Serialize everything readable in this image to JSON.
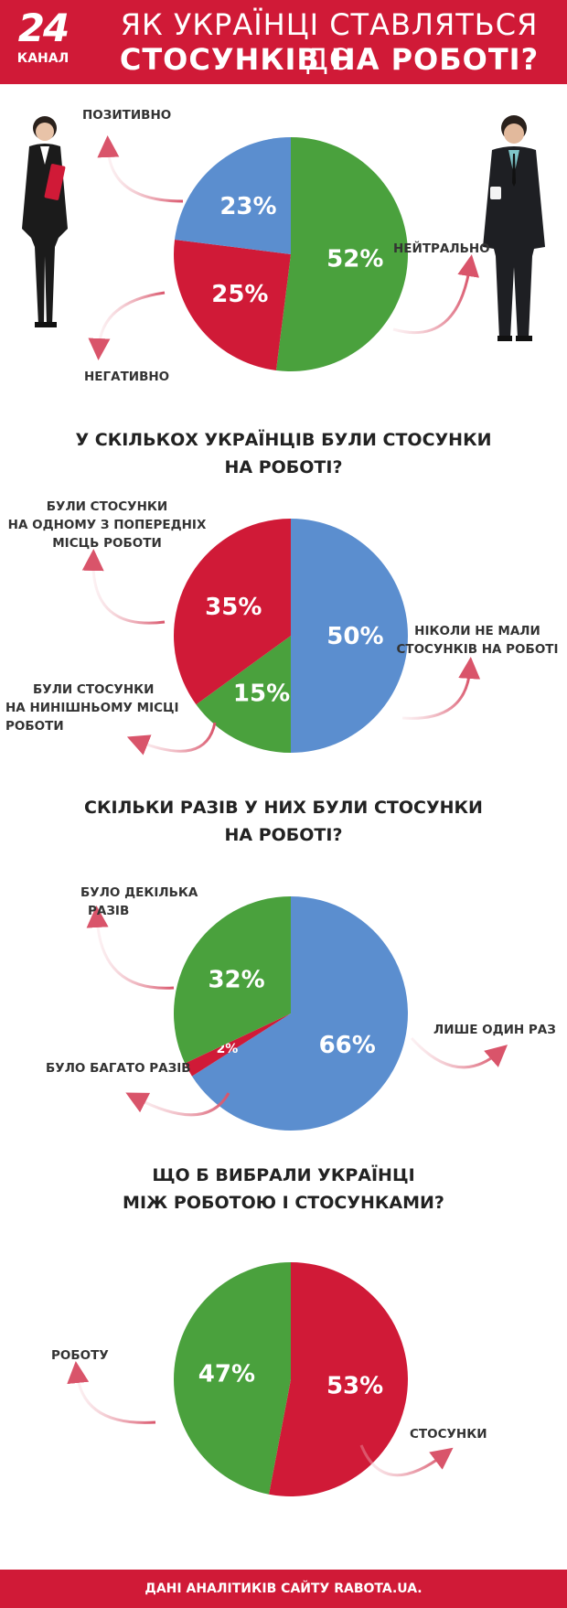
{
  "header": {
    "logo_number": "24",
    "logo_word": "КАНАЛ",
    "title_line1": "ЯК УКРАЇНЦІ СТАВЛЯТЬСЯ ДО",
    "title_line2": "СТОСУНКІВ НА РОБОТІ?"
  },
  "colors": {
    "red": "#d01a37",
    "blue": "#5b8ecf",
    "green": "#4aa13d"
  },
  "chart_data": [
    {
      "type": "pie",
      "title": "",
      "slices": [
        {
          "name": "НЕЙТРАЛЬНО",
          "value": 52,
          "label": "52%",
          "color": "#4aa13d"
        },
        {
          "name": "НЕГАТИВНО",
          "value": 25,
          "label": "25%",
          "color": "#d01a37"
        },
        {
          "name": "ПОЗИТИВНО",
          "value": 23,
          "label": "23%",
          "color": "#5b8ecf"
        }
      ]
    },
    {
      "type": "pie",
      "title_line1": "У СКІЛЬКОХ УКРАЇНЦІВ БУЛИ СТОСУНКИ",
      "title_line2": "НА РОБОТІ?",
      "slices": [
        {
          "name": "НІКОЛИ НЕ МАЛИ СТОСУНКІВ НА РОБОТІ",
          "value": 50,
          "label": "50%",
          "color": "#5b8ecf"
        },
        {
          "name": "БУЛИ СТОСУНКИ НА НИНІШНЬОМУ МІСЦІ РОБОТИ",
          "value": 15,
          "label": "15%",
          "color": "#4aa13d"
        },
        {
          "name": "БУЛИ СТОСУНКИ НА ОДНОМУ З ПОПЕРЕДНІХ МІСЦЬ РОБОТИ",
          "value": 35,
          "label": "35%",
          "color": "#d01a37"
        }
      ]
    },
    {
      "type": "pie",
      "title_line1": "СКІЛЬКИ РАЗІВ У НИХ БУЛИ СТОСУНКИ",
      "title_line2": "НА РОБОТІ?",
      "slices": [
        {
          "name": "ЛИШЕ ОДИН РАЗ",
          "value": 66,
          "label": "66%",
          "color": "#5b8ecf"
        },
        {
          "name": "БУЛО БАГАТО РАЗІВ",
          "value": 2,
          "label": "2%",
          "color": "#d01a37"
        },
        {
          "name": "БУЛО ДЕКІЛЬКА РАЗІВ",
          "value": 32,
          "label": "32%",
          "color": "#4aa13d"
        }
      ]
    },
    {
      "type": "pie",
      "title_line1": "ЩО Б ВИБРАЛИ УКРАЇНЦІ",
      "title_line2": "МІЖ РОБОТОЮ І СТОСУНКАМИ?",
      "slices": [
        {
          "name": "СТОСУНКИ",
          "value": 53,
          "label": "53%",
          "color": "#d01a37"
        },
        {
          "name": "РОБОТУ",
          "value": 47,
          "label": "47%",
          "color": "#4aa13d"
        }
      ]
    }
  ],
  "labels": {
    "c1_pos": "ПОЗИТИВНО",
    "c1_neu": "НЕЙТРАЛЬНО",
    "c1_neg": "НЕГАТИВНО",
    "c2_prev": [
      "БУЛИ СТОСУНКИ",
      "НА ОДНОМУ З ПОПЕРЕДНІХ",
      "МІСЦЬ РОБОТИ"
    ],
    "c2_never": [
      "НІКОЛИ НЕ МАЛИ",
      "СТОСУНКІВ НА РОБОТІ"
    ],
    "c2_current": [
      "БУЛИ СТОСУНКИ",
      "НА НИНІШНЬОМУ МІСЦІ",
      "РОБОТИ"
    ],
    "c3_few": [
      "БУЛО ДЕКІЛЬКА",
      "РАЗІВ"
    ],
    "c3_once": "ЛИШЕ ОДИН РАЗ",
    "c3_many": "БУЛО БАГАТО РАЗІВ",
    "c4_work": "РОБОТУ",
    "c4_rel": "СТОСУНКИ"
  },
  "footer": "ДАНІ АНАЛІТИКІВ САЙТУ RABOTA.UA."
}
